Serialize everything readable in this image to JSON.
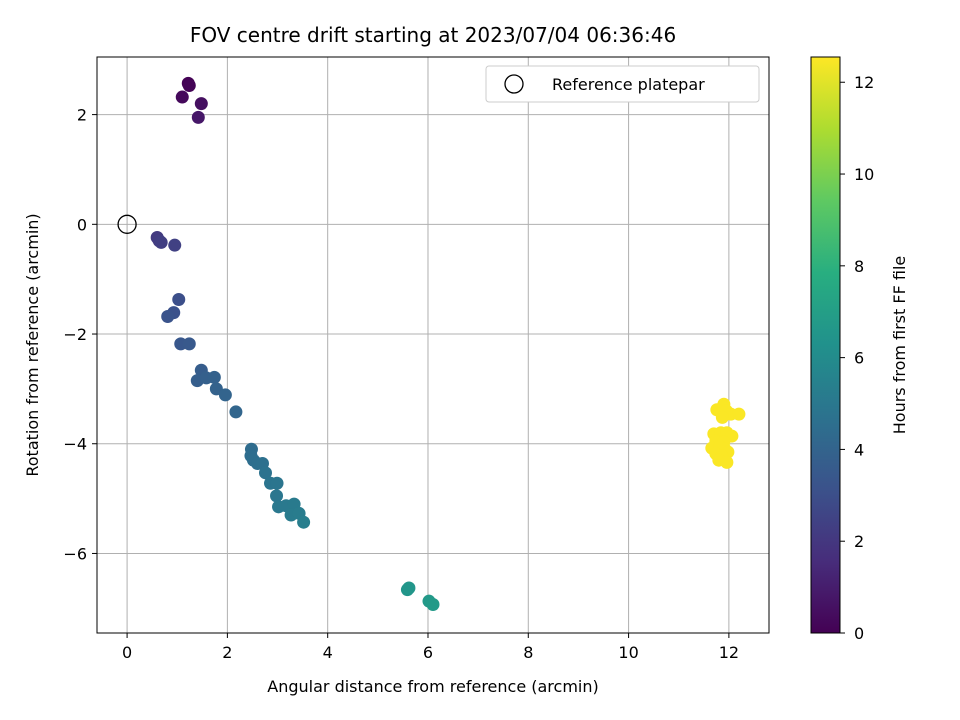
{
  "chart_data": {
    "type": "scatter",
    "title": "FOV centre drift starting at 2023/07/04 06:36:46",
    "xlabel": "Angular distance from reference (arcmin)",
    "ylabel": "Rotation from reference (arcmin)",
    "xlim": [
      -0.6,
      12.8
    ],
    "ylim": [
      -7.45,
      3.05
    ],
    "xticks": [
      0,
      2,
      4,
      6,
      8,
      10,
      12
    ],
    "yticks": [
      -6,
      -4,
      -2,
      0,
      2
    ],
    "grid": true,
    "legend": {
      "position": "top-right",
      "entries": [
        {
          "label": "Reference platepar",
          "marker": "open-circle"
        }
      ]
    },
    "colorbar": {
      "label": "Hours from first FF file",
      "range": [
        0,
        12.55
      ],
      "ticks": [
        0,
        2,
        4,
        6,
        8,
        10,
        12
      ],
      "colormap": "viridis"
    },
    "reference_point": {
      "x": 0,
      "y": 0
    },
    "points": [
      {
        "x": 1.22,
        "y": 2.57,
        "h": 0.05
      },
      {
        "x": 1.24,
        "y": 2.53,
        "h": 0.1
      },
      {
        "x": 1.1,
        "y": 2.32,
        "h": 0.3
      },
      {
        "x": 1.48,
        "y": 2.2,
        "h": 0.5
      },
      {
        "x": 1.42,
        "y": 1.95,
        "h": 0.8
      },
      {
        "x": 0.6,
        "y": -0.24,
        "h": 2.1
      },
      {
        "x": 0.64,
        "y": -0.3,
        "h": 2.2
      },
      {
        "x": 0.68,
        "y": -0.33,
        "h": 2.3
      },
      {
        "x": 0.95,
        "y": -0.38,
        "h": 2.4
      },
      {
        "x": 1.03,
        "y": -1.37,
        "h": 3.0
      },
      {
        "x": 0.93,
        "y": -1.61,
        "h": 3.1
      },
      {
        "x": 0.81,
        "y": -1.68,
        "h": 3.2
      },
      {
        "x": 1.07,
        "y": -2.18,
        "h": 3.4
      },
      {
        "x": 1.24,
        "y": -2.18,
        "h": 3.5
      },
      {
        "x": 1.48,
        "y": -2.66,
        "h": 3.7
      },
      {
        "x": 1.4,
        "y": -2.85,
        "h": 3.75
      },
      {
        "x": 1.58,
        "y": -2.8,
        "h": 3.8
      },
      {
        "x": 1.74,
        "y": -2.79,
        "h": 3.85
      },
      {
        "x": 1.78,
        "y": -3.0,
        "h": 3.9
      },
      {
        "x": 1.96,
        "y": -3.11,
        "h": 4.0
      },
      {
        "x": 2.17,
        "y": -3.42,
        "h": 4.1
      },
      {
        "x": 2.48,
        "y": -4.1,
        "h": 4.4
      },
      {
        "x": 2.47,
        "y": -4.22,
        "h": 4.45
      },
      {
        "x": 2.52,
        "y": -4.3,
        "h": 4.5
      },
      {
        "x": 2.6,
        "y": -4.36,
        "h": 4.55
      },
      {
        "x": 2.7,
        "y": -4.36,
        "h": 4.6
      },
      {
        "x": 2.76,
        "y": -4.53,
        "h": 4.7
      },
      {
        "x": 2.86,
        "y": -4.72,
        "h": 4.8
      },
      {
        "x": 2.99,
        "y": -4.72,
        "h": 4.85
      },
      {
        "x": 2.98,
        "y": -4.95,
        "h": 4.9
      },
      {
        "x": 3.02,
        "y": -5.15,
        "h": 5.0
      },
      {
        "x": 3.17,
        "y": -5.13,
        "h": 5.05
      },
      {
        "x": 3.33,
        "y": -5.1,
        "h": 5.1
      },
      {
        "x": 3.27,
        "y": -5.3,
        "h": 5.15
      },
      {
        "x": 3.43,
        "y": -5.27,
        "h": 5.2
      },
      {
        "x": 3.52,
        "y": -5.43,
        "h": 5.3
      },
      {
        "x": 5.59,
        "y": -6.66,
        "h": 6.5
      },
      {
        "x": 5.62,
        "y": -6.63,
        "h": 6.55
      },
      {
        "x": 6.02,
        "y": -6.87,
        "h": 6.7
      },
      {
        "x": 6.1,
        "y": -6.93,
        "h": 6.75
      },
      {
        "x": 11.9,
        "y": -3.28,
        "h": 12.5
      },
      {
        "x": 11.76,
        "y": -3.38,
        "h": 12.5
      },
      {
        "x": 11.85,
        "y": -3.44,
        "h": 12.5
      },
      {
        "x": 11.95,
        "y": -3.4,
        "h": 12.5
      },
      {
        "x": 12.04,
        "y": -3.46,
        "h": 12.5
      },
      {
        "x": 12.2,
        "y": -3.46,
        "h": 12.5
      },
      {
        "x": 11.87,
        "y": -3.52,
        "h": 12.5
      },
      {
        "x": 11.7,
        "y": -3.82,
        "h": 12.5
      },
      {
        "x": 11.84,
        "y": -3.8,
        "h": 12.5
      },
      {
        "x": 11.96,
        "y": -3.8,
        "h": 12.5
      },
      {
        "x": 12.06,
        "y": -3.86,
        "h": 12.5
      },
      {
        "x": 11.74,
        "y": -3.95,
        "h": 12.5
      },
      {
        "x": 11.9,
        "y": -3.97,
        "h": 12.5
      },
      {
        "x": 11.66,
        "y": -4.08,
        "h": 12.5
      },
      {
        "x": 11.82,
        "y": -4.05,
        "h": 12.5
      },
      {
        "x": 11.92,
        "y": -4.1,
        "h": 12.5
      },
      {
        "x": 11.74,
        "y": -4.18,
        "h": 12.5
      },
      {
        "x": 11.98,
        "y": -4.15,
        "h": 12.5
      },
      {
        "x": 11.86,
        "y": -4.22,
        "h": 12.5
      },
      {
        "x": 11.8,
        "y": -4.3,
        "h": 12.5
      },
      {
        "x": 11.96,
        "y": -4.34,
        "h": 12.5
      }
    ]
  }
}
